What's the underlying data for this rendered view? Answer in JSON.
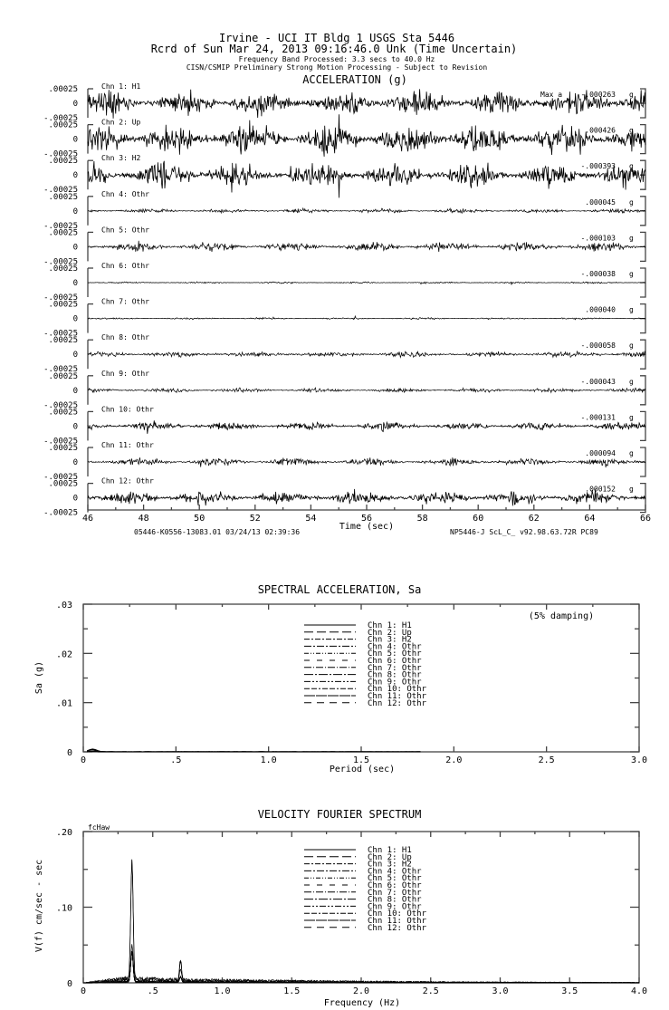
{
  "header": {
    "line1": "Irvine - UCI IT Bldg  1     USGS Sta 5446",
    "line2": "Rcrd of Sun Mar 24, 2013 09:16:46.0 Unk (Time Uncertain)",
    "line3": "Frequency Band Processed: 3.3 secs to 40.0 Hz",
    "line4": "CISN/CSMIP Preliminary Strong Motion Processing - Subject to Revision"
  },
  "chart_data": [
    {
      "type": "line",
      "title": "ACCELERATION (g)",
      "xlabel": "Time (sec)",
      "xlim": [
        46,
        66
      ],
      "xticks": [
        "46",
        "48",
        "50",
        "52",
        "54",
        "56",
        "58",
        "60",
        "62",
        "64",
        "66"
      ],
      "yticks": [
        ".00025",
        "0",
        "-.00025"
      ],
      "ylim": [
        -0.00025,
        0.00025
      ],
      "max_prefix": "Max a",
      "unit": "g",
      "channels": [
        {
          "name": "Chn 1: H1",
          "max": "-.000263",
          "max_value": -0.000263
        },
        {
          "name": "Chn 2: Up",
          "max": ".000426",
          "max_value": 0.000426
        },
        {
          "name": "Chn 3: H2",
          "max": "-.000393",
          "max_value": -0.000393
        },
        {
          "name": "Chn 4: Othr",
          "max": ".000045",
          "max_value": 4.5e-05
        },
        {
          "name": "Chn 5: Othr",
          "max": "-.000103",
          "max_value": -0.000103
        },
        {
          "name": "Chn 6: Othr",
          "max": "-.000038",
          "max_value": -3.8e-05
        },
        {
          "name": "Chn 7: Othr",
          "max": ".000040",
          "max_value": 4e-05
        },
        {
          "name": "Chn 8: Othr",
          "max": "-.000058",
          "max_value": -5.8e-05
        },
        {
          "name": "Chn 9: Othr",
          "max": "-.000043",
          "max_value": -4.3e-05
        },
        {
          "name": "Chn 10: Othr",
          "max": "-.000131",
          "max_value": -0.000131
        },
        {
          "name": "Chn 11: Othr",
          "max": ".000094",
          "max_value": 9.4e-05
        },
        {
          "name": "Chn 12: Othr",
          "max": ".000152",
          "max_value": 0.000152
        }
      ],
      "footer_left": "05446-K0556-13083.01 03/24/13 02:39:36",
      "footer_right": "NP5446-J  ScL_C_  v92.98.63.72R PC89"
    },
    {
      "type": "line",
      "title": "SPECTRAL ACCELERATION, Sa",
      "xlabel": "Period (sec)",
      "ylabel": "Sa (g)",
      "xlim": [
        0,
        3.0
      ],
      "ylim": [
        0,
        0.03
      ],
      "xticks": [
        "0",
        ".5",
        "1.0",
        "1.5",
        "2.0",
        "2.5",
        "3.0"
      ],
      "yticks": [
        "0",
        ".01",
        ".02",
        ".03"
      ],
      "annotation": "(5% damping)",
      "legend": [
        "Chn 1: H1",
        "Chn 2: Up",
        "Chn 3: H2",
        "Chn 4: Othr",
        "Chn 5: Othr",
        "Chn 6: Othr",
        "Chn 7: Othr",
        "Chn 8: Othr",
        "Chn 9: Othr",
        "Chn 10: Othr",
        "Chn 11: Othr",
        "Chn 12: Othr"
      ],
      "legend_position": "top-center",
      "peak": {
        "period": 0.05,
        "value": 0.0006
      }
    },
    {
      "type": "line",
      "title": "VELOCITY FOURIER SPECTRUM",
      "xlabel": "Frequency (Hz)",
      "ylabel": "V(f)   cm/sec - sec",
      "corner_label": "fcHaw",
      "xlim": [
        0,
        4.0
      ],
      "ylim": [
        0,
        0.2
      ],
      "xticks": [
        "0",
        ".5",
        "1.0",
        "1.5",
        "2.0",
        "2.5",
        "3.0",
        "3.5",
        "4.0"
      ],
      "yticks": [
        "0",
        ".10",
        ".20"
      ],
      "legend": [
        "Chn 1: H1",
        "Chn 2: Up",
        "Chn 3: H2",
        "Chn 4: Othr",
        "Chn 5: Othr",
        "Chn 6: Othr",
        "Chn 7: Othr",
        "Chn 8: Othr",
        "Chn 9: Othr",
        "Chn 10: Othr",
        "Chn 11: Othr",
        "Chn 12: Othr"
      ],
      "legend_position": "top-center",
      "peaks": [
        {
          "freq": 0.35,
          "value": 0.16
        },
        {
          "freq": 0.7,
          "value": 0.028
        }
      ],
      "background_level": 0.006
    }
  ]
}
